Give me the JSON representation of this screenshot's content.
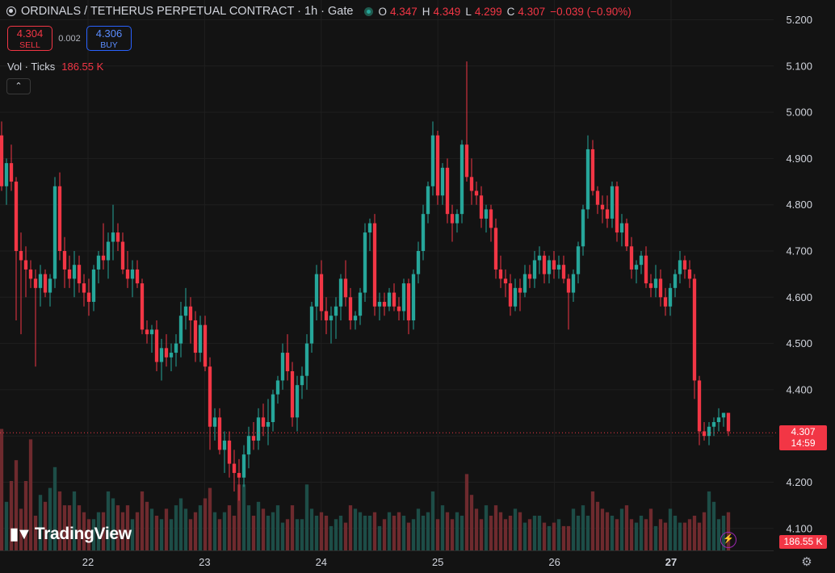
{
  "header": {
    "title": "ORDINALS / TETHERUS PERPETUAL CONTRACT · 1h · Gate",
    "open_key": "O",
    "open": "4.347",
    "high_key": "H",
    "high": "4.349",
    "low_key": "L",
    "low": "4.299",
    "close_key": "C",
    "close": "4.307",
    "change": "−0.039 (−0.90%)"
  },
  "trade": {
    "sell_price": "4.304",
    "sell_label": "SELL",
    "spread": "0.002",
    "buy_price": "4.306",
    "buy_label": "BUY"
  },
  "volume": {
    "label": "Vol · Ticks",
    "value": "186.55 K"
  },
  "price_label": {
    "price": "4.307",
    "countdown": "14:59"
  },
  "volume_label": "186.55 K",
  "logo_text": "TradingView",
  "colors": {
    "up": "#26a69a",
    "down": "#f23645",
    "background": "#131313"
  },
  "chart_data": {
    "type": "candlestick",
    "x_ticks": [
      "22",
      "23",
      "24",
      "25",
      "26",
      "27"
    ],
    "y_ticks": [
      "5.200",
      "5.100",
      "5.000",
      "4.900",
      "4.800",
      "4.700",
      "4.600",
      "4.500",
      "4.400",
      "4.300",
      "4.200",
      "4.100"
    ],
    "ylim": [
      4.08,
      5.22
    ],
    "last_price": 4.307,
    "candles": [
      [
        4.95,
        4.98,
        4.83,
        4.84
      ],
      [
        4.84,
        4.9,
        4.8,
        4.89
      ],
      [
        4.89,
        4.93,
        4.83,
        4.85
      ],
      [
        4.85,
        4.86,
        4.55,
        4.7
      ],
      [
        4.7,
        4.74,
        4.52,
        4.68
      ],
      [
        4.68,
        4.71,
        4.6,
        4.66
      ],
      [
        4.66,
        4.68,
        4.62,
        4.64
      ],
      [
        4.64,
        4.66,
        4.45,
        4.62
      ],
      [
        4.62,
        4.67,
        4.58,
        4.65
      ],
      [
        4.65,
        4.66,
        4.6,
        4.61
      ],
      [
        4.61,
        4.65,
        4.58,
        4.64
      ],
      [
        4.64,
        4.86,
        4.62,
        4.84
      ],
      [
        4.84,
        4.87,
        4.68,
        4.7
      ],
      [
        4.7,
        4.73,
        4.62,
        4.66
      ],
      [
        4.66,
        4.69,
        4.62,
        4.64
      ],
      [
        4.64,
        4.7,
        4.6,
        4.67
      ],
      [
        4.67,
        4.69,
        4.61,
        4.63
      ],
      [
        4.63,
        4.65,
        4.58,
        4.61
      ],
      [
        4.61,
        4.64,
        4.56,
        4.59
      ],
      [
        4.59,
        4.67,
        4.57,
        4.66
      ],
      [
        4.66,
        4.7,
        4.63,
        4.69
      ],
      [
        4.69,
        4.76,
        4.66,
        4.68
      ],
      [
        4.68,
        4.74,
        4.64,
        4.72
      ],
      [
        4.72,
        4.8,
        4.68,
        4.74
      ],
      [
        4.74,
        4.76,
        4.7,
        4.72
      ],
      [
        4.72,
        4.74,
        4.65,
        4.66
      ],
      [
        4.66,
        4.7,
        4.62,
        4.64
      ],
      [
        4.64,
        4.68,
        4.6,
        4.66
      ],
      [
        4.66,
        4.68,
        4.62,
        4.63
      ],
      [
        4.63,
        4.64,
        4.52,
        4.53
      ],
      [
        4.53,
        4.55,
        4.5,
        4.52
      ],
      [
        4.52,
        4.54,
        4.48,
        4.53
      ],
      [
        4.53,
        4.55,
        4.44,
        4.46
      ],
      [
        4.46,
        4.51,
        4.42,
        4.49
      ],
      [
        4.49,
        4.52,
        4.45,
        4.47
      ],
      [
        4.47,
        4.5,
        4.44,
        4.48
      ],
      [
        4.48,
        4.52,
        4.45,
        4.5
      ],
      [
        4.5,
        4.59,
        4.47,
        4.56
      ],
      [
        4.56,
        4.62,
        4.53,
        4.58
      ],
      [
        4.58,
        4.6,
        4.5,
        4.55
      ],
      [
        4.55,
        4.57,
        4.46,
        4.48
      ],
      [
        4.48,
        4.56,
        4.46,
        4.54
      ],
      [
        4.54,
        4.56,
        4.44,
        4.45
      ],
      [
        4.45,
        4.47,
        4.27,
        4.32
      ],
      [
        4.32,
        4.36,
        4.29,
        4.34
      ],
      [
        4.34,
        4.36,
        4.26,
        4.27
      ],
      [
        4.27,
        4.31,
        4.22,
        4.29
      ],
      [
        4.29,
        4.31,
        4.21,
        4.24
      ],
      [
        4.24,
        4.27,
        4.18,
        4.22
      ],
      [
        4.22,
        4.25,
        4.16,
        4.21
      ],
      [
        4.21,
        4.28,
        4.19,
        4.26
      ],
      [
        4.26,
        4.32,
        4.23,
        4.3
      ],
      [
        4.3,
        4.33,
        4.27,
        4.29
      ],
      [
        4.29,
        4.36,
        4.27,
        4.34
      ],
      [
        4.34,
        4.37,
        4.3,
        4.32
      ],
      [
        4.32,
        4.38,
        4.28,
        4.33
      ],
      [
        4.33,
        4.4,
        4.31,
        4.39
      ],
      [
        4.39,
        4.43,
        4.37,
        4.42
      ],
      [
        4.42,
        4.5,
        4.4,
        4.48
      ],
      [
        4.48,
        4.52,
        4.42,
        4.44
      ],
      [
        4.44,
        4.46,
        4.32,
        4.34
      ],
      [
        4.34,
        4.43,
        4.31,
        4.41
      ],
      [
        4.41,
        4.45,
        4.38,
        4.43
      ],
      [
        4.43,
        4.52,
        4.4,
        4.5
      ],
      [
        4.5,
        4.59,
        4.48,
        4.58
      ],
      [
        4.58,
        4.67,
        4.55,
        4.65
      ],
      [
        4.65,
        4.68,
        4.55,
        4.57
      ],
      [
        4.57,
        4.6,
        4.52,
        4.55
      ],
      [
        4.55,
        4.58,
        4.5,
        4.56
      ],
      [
        4.56,
        4.6,
        4.51,
        4.58
      ],
      [
        4.58,
        4.65,
        4.55,
        4.64
      ],
      [
        4.64,
        4.68,
        4.58,
        4.6
      ],
      [
        4.6,
        4.62,
        4.53,
        4.55
      ],
      [
        4.55,
        4.57,
        4.53,
        4.56
      ],
      [
        4.56,
        4.62,
        4.54,
        4.61
      ],
      [
        4.61,
        4.76,
        4.59,
        4.74
      ],
      [
        4.74,
        4.77,
        4.7,
        4.76
      ],
      [
        4.76,
        4.78,
        4.56,
        4.58
      ],
      [
        4.58,
        4.61,
        4.55,
        4.59
      ],
      [
        4.59,
        4.61,
        4.56,
        4.58
      ],
      [
        4.58,
        4.62,
        4.57,
        4.61
      ],
      [
        4.61,
        4.63,
        4.57,
        4.58
      ],
      [
        4.58,
        4.6,
        4.55,
        4.57
      ],
      [
        4.57,
        4.64,
        4.55,
        4.63
      ],
      [
        4.63,
        4.64,
        4.52,
        4.55
      ],
      [
        4.55,
        4.66,
        4.53,
        4.65
      ],
      [
        4.65,
        4.72,
        4.63,
        4.7
      ],
      [
        4.7,
        4.8,
        4.68,
        4.78
      ],
      [
        4.78,
        4.85,
        4.76,
        4.84
      ],
      [
        4.84,
        4.98,
        4.82,
        4.95
      ],
      [
        4.95,
        4.96,
        4.8,
        4.82
      ],
      [
        4.82,
        4.89,
        4.8,
        4.88
      ],
      [
        4.88,
        4.9,
        4.76,
        4.78
      ],
      [
        4.78,
        4.8,
        4.72,
        4.76
      ],
      [
        4.76,
        4.79,
        4.74,
        4.78
      ],
      [
        4.78,
        4.94,
        4.76,
        4.93
      ],
      [
        4.93,
        5.11,
        4.85,
        4.86
      ],
      [
        4.86,
        4.9,
        4.8,
        4.83
      ],
      [
        4.83,
        4.85,
        4.8,
        4.82
      ],
      [
        4.82,
        4.84,
        4.75,
        4.77
      ],
      [
        4.77,
        4.8,
        4.74,
        4.79
      ],
      [
        4.79,
        4.8,
        4.72,
        4.75
      ],
      [
        4.75,
        4.77,
        4.64,
        4.66
      ],
      [
        4.66,
        4.69,
        4.62,
        4.64
      ],
      [
        4.64,
        4.66,
        4.6,
        4.63
      ],
      [
        4.63,
        4.65,
        4.56,
        4.58
      ],
      [
        4.58,
        4.64,
        4.57,
        4.62
      ],
      [
        4.62,
        4.64,
        4.57,
        4.61
      ],
      [
        4.61,
        4.67,
        4.6,
        4.65
      ],
      [
        4.65,
        4.67,
        4.62,
        4.64
      ],
      [
        4.64,
        4.7,
        4.62,
        4.68
      ],
      [
        4.68,
        4.71,
        4.65,
        4.69
      ],
      [
        4.69,
        4.7,
        4.63,
        4.65
      ],
      [
        4.65,
        4.69,
        4.63,
        4.68
      ],
      [
        4.68,
        4.7,
        4.64,
        4.66
      ],
      [
        4.66,
        4.69,
        4.64,
        4.67
      ],
      [
        4.67,
        4.69,
        4.63,
        4.64
      ],
      [
        4.64,
        4.65,
        4.53,
        4.61
      ],
      [
        4.61,
        4.66,
        4.59,
        4.65
      ],
      [
        4.65,
        4.72,
        4.63,
        4.71
      ],
      [
        4.71,
        4.8,
        4.69,
        4.79
      ],
      [
        4.79,
        4.95,
        4.77,
        4.92
      ],
      [
        4.92,
        4.94,
        4.82,
        4.83
      ],
      [
        4.83,
        4.84,
        4.78,
        4.8
      ],
      [
        4.8,
        4.82,
        4.76,
        4.79
      ],
      [
        4.79,
        4.82,
        4.75,
        4.77
      ],
      [
        4.77,
        4.85,
        4.75,
        4.84
      ],
      [
        4.84,
        4.85,
        4.72,
        4.74
      ],
      [
        4.74,
        4.78,
        4.71,
        4.76
      ],
      [
        4.76,
        4.77,
        4.7,
        4.71
      ],
      [
        4.71,
        4.73,
        4.64,
        4.66
      ],
      [
        4.66,
        4.68,
        4.63,
        4.67
      ],
      [
        4.67,
        4.7,
        4.65,
        4.69
      ],
      [
        4.69,
        4.71,
        4.62,
        4.63
      ],
      [
        4.63,
        4.65,
        4.6,
        4.62
      ],
      [
        4.62,
        4.67,
        4.6,
        4.64
      ],
      [
        4.64,
        4.66,
        4.58,
        4.6
      ],
      [
        4.6,
        4.62,
        4.56,
        4.58
      ],
      [
        4.58,
        4.63,
        4.56,
        4.62
      ],
      [
        4.62,
        4.66,
        4.6,
        4.65
      ],
      [
        4.65,
        4.7,
        4.63,
        4.68
      ],
      [
        4.68,
        4.69,
        4.64,
        4.66
      ],
      [
        4.66,
        4.68,
        4.62,
        4.64
      ],
      [
        4.64,
        4.65,
        4.38,
        4.42
      ],
      [
        4.42,
        4.43,
        4.28,
        4.31
      ],
      [
        4.31,
        4.33,
        4.29,
        4.3
      ],
      [
        4.3,
        4.33,
        4.28,
        4.32
      ],
      [
        4.32,
        4.34,
        4.3,
        4.33
      ],
      [
        4.33,
        4.36,
        4.31,
        4.34
      ],
      [
        4.34,
        4.35,
        4.32,
        4.35
      ],
      [
        4.35,
        4.35,
        4.3,
        4.31
      ]
    ],
    "volumes": [
      35,
      14,
      20,
      26,
      12,
      20,
      32,
      10,
      16,
      14,
      18,
      24,
      17,
      13,
      13,
      17,
      13,
      11,
      9,
      9,
      11,
      11,
      17,
      15,
      13,
      11,
      13,
      9,
      11,
      17,
      14,
      12,
      10,
      9,
      12,
      9,
      13,
      15,
      12,
      9,
      11,
      13,
      15,
      18,
      11,
      9,
      11,
      13,
      10,
      19,
      19,
      13,
      10,
      14,
      12,
      10,
      11,
      13,
      8,
      9,
      13,
      9,
      9,
      19,
      12,
      10,
      11,
      10,
      7,
      9,
      10,
      8,
      13,
      12,
      11,
      10,
      10,
      11,
      7,
      9,
      11,
      10,
      11,
      10,
      8,
      9,
      12,
      10,
      11,
      17,
      9,
      13,
      11,
      9,
      11,
      10,
      22,
      16,
      12,
      9,
      13,
      10,
      13,
      11,
      9,
      10,
      12,
      11,
      8,
      9,
      10,
      10,
      8,
      7,
      8,
      9,
      7,
      7,
      12,
      10,
      13,
      10,
      17,
      14,
      12,
      11,
      10,
      9,
      12,
      13,
      9,
      8,
      10,
      9,
      12,
      7,
      9,
      8,
      12,
      10,
      8,
      8,
      9,
      10,
      8,
      11,
      17,
      14,
      9,
      10,
      11,
      12,
      8,
      7
    ]
  }
}
